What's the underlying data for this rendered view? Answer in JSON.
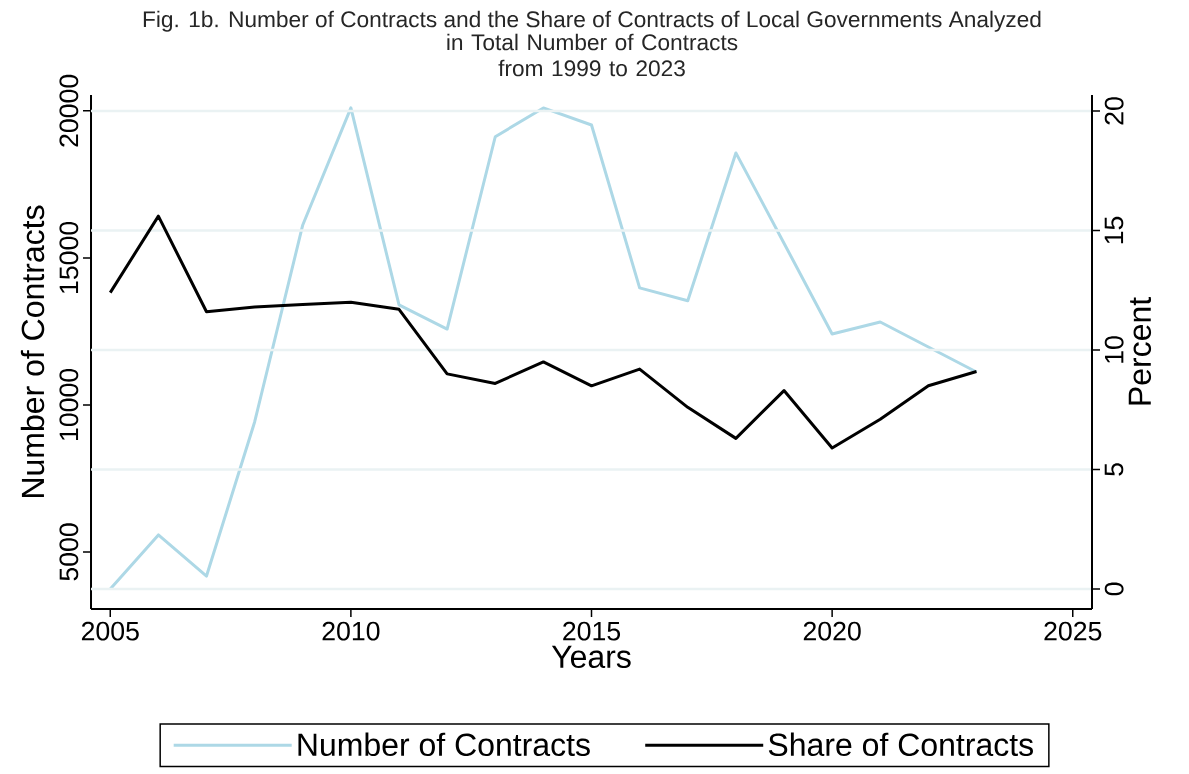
{
  "chart_data": {
    "type": "line",
    "title": "Fig. 1b. Number of Contracts and the Share of Contracts of Local Governments Analyzed",
    "subtitle": "in Total Number of Contracts from 1999 to 2023",
    "xlabel": "Years",
    "ylabel": "Number of Contracts",
    "y2label": "Percent",
    "x": [
      2005,
      2006,
      2007,
      2008,
      2009,
      2010,
      2011,
      2012,
      2013,
      2014,
      2015,
      2016,
      2017,
      2018,
      2019,
      2020,
      2021,
      2022,
      2023
    ],
    "series": [
      {
        "name": "Number of Contracts",
        "color": "#add8e6",
        "values": [
          3740,
          5580,
          4180,
          9420,
          16120,
          20100,
          13400,
          12580,
          19120,
          20100,
          19520,
          13980,
          13540,
          18570,
          15500,
          12410,
          12820,
          11970,
          11120
        ]
      },
      {
        "name": "Share of Contracts",
        "color": "#000000",
        "axis": "y2",
        "values": [
          12.4,
          15.6,
          11.6,
          11.8,
          11.9,
          12.0,
          11.7,
          9.0,
          8.6,
          9.5,
          8.5,
          9.2,
          7.6,
          6.3,
          8.3,
          5.9,
          7.1,
          8.5,
          9.1
        ]
      }
    ],
    "xlim": [
      2004.6,
      2025.4
    ],
    "xticks": [
      2005,
      2010,
      2015,
      2020,
      2025
    ],
    "ylim": [
      3060,
      20540
    ],
    "yticks": [
      5000,
      10000,
      15000,
      20000
    ],
    "y2lim": [
      -0.84,
      20.67
    ],
    "y2ticks": [
      0,
      5,
      10,
      15,
      20
    ],
    "grid": "y",
    "legend": "bottom",
    "marker": "none",
    "line_style": "solid"
  }
}
